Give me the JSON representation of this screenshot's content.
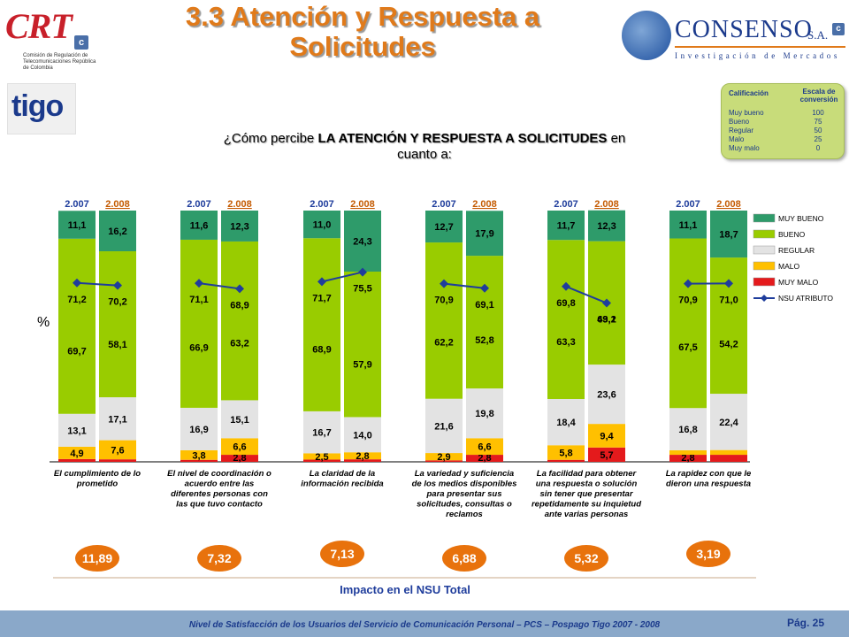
{
  "title": "3.3 Atención y Respuesta a Solicitudes",
  "logos": {
    "crt_mark": "CRT",
    "crt_c": "c",
    "crt_subtitle": "Comisión de Regulación de Telecomunicaciones República de Colombia",
    "tigo": "tigo",
    "consenso_name": "CONSENSO",
    "consenso_sa": "S.A.",
    "consenso_c": "c",
    "consenso_sub": "Investigación de Mercados"
  },
  "scale_box": {
    "col1": "Calificación",
    "col2": "Escala de conversión",
    "rows": [
      {
        "label": "Muy bueno",
        "value": "100"
      },
      {
        "label": "Bueno",
        "value": "75"
      },
      {
        "label": "Regular",
        "value": "50"
      },
      {
        "label": "Malo",
        "value": "25"
      },
      {
        "label": "Muy malo",
        "value": "0"
      }
    ]
  },
  "question": {
    "prefix": "¿Cómo percibe ",
    "bold": "LA ATENCIÓN Y RESPUESTA A SOLICITUDES",
    "suffix": " en cuanto a:"
  },
  "y_axis_label": "%",
  "impact_label": "Impacto en el NSU Total",
  "footer": "Nivel de Satisfacción de los Usuarios del Servicio de Comunicación Personal – PCS – Pospago Tigo 2007 - 2008",
  "page": "Pág. 25",
  "colors": {
    "muy_bueno": "#2e9b6a",
    "bueno": "#99cc00",
    "regular": "#e3e3e3",
    "malo": "#ffc000",
    "muy_malo": "#e41a1c",
    "nsu": "#1f3d9c",
    "impact": "#e8720c",
    "accent_title": "#e07a1a"
  },
  "chart_data": {
    "type": "bar",
    "stacked": true,
    "ylim": [
      0,
      100
    ],
    "legend": {
      "placement": "right",
      "entries": [
        "MUY BUENO",
        "BUENO",
        "REGULAR",
        "MALO",
        "MUY MALO",
        "NSU ATRIBUTO"
      ]
    },
    "groups": [
      {
        "label": "El cumplimiento de lo prometido",
        "impact": "11,89",
        "bars": [
          {
            "year": "2.007",
            "muy_malo": 1.1,
            "malo": 4.9,
            "regular": 13.1,
            "bueno": 69.7,
            "muy_bueno": 11.1,
            "nsu": 71.2,
            "labels": {
              "muy_malo": "",
              "malo": "4,9",
              "regular": "13,1",
              "bueno": "69,7",
              "muy_bueno": "11,1",
              "nsu": "71,2"
            }
          },
          {
            "year": "2.008",
            "muy_malo": 1.0,
            "malo": 7.6,
            "regular": 17.1,
            "bueno": 58.1,
            "muy_bueno": 16.2,
            "nsu": 70.2,
            "labels": {
              "muy_malo": "",
              "malo": "7,6",
              "regular": "17,1",
              "bueno": "58,1",
              "muy_bueno": "16,2",
              "nsu": "70,2"
            }
          }
        ]
      },
      {
        "label": "El nivel de coordinación o acuerdo entre las diferentes personas con las que tuvo contacto",
        "impact": "7,32",
        "bars": [
          {
            "year": "2.007",
            "muy_malo": 0.8,
            "malo": 3.8,
            "regular": 16.9,
            "bueno": 66.9,
            "muy_bueno": 11.6,
            "nsu": 71.1,
            "labels": {
              "muy_malo": "",
              "malo": "3,8",
              "regular": "16,9",
              "bueno": "66,9",
              "muy_bueno": "11,6",
              "nsu": "71,1"
            }
          },
          {
            "year": "2.008",
            "muy_malo": 2.8,
            "malo": 6.6,
            "regular": 15.1,
            "bueno": 63.2,
            "muy_bueno": 12.3,
            "nsu": 68.9,
            "labels": {
              "muy_malo": "2,8",
              "malo": "6,6",
              "regular": "15,1",
              "bueno": "63,2",
              "muy_bueno": "12,3",
              "nsu": "68,9"
            }
          }
        ]
      },
      {
        "label": "La claridad de la información recibida",
        "impact": "7,13",
        "bars": [
          {
            "year": "2.007",
            "muy_malo": 0.9,
            "malo": 2.5,
            "regular": 16.7,
            "bueno": 68.9,
            "muy_bueno": 11.0,
            "nsu": 71.7,
            "labels": {
              "muy_malo": "",
              "malo": "2,5",
              "regular": "16,7",
              "bueno": "68,9",
              "muy_bueno": "11,0",
              "nsu": "71,7"
            }
          },
          {
            "year": "2.008",
            "muy_malo": 1.0,
            "malo": 2.8,
            "regular": 14.0,
            "bueno": 57.9,
            "muy_bueno": 24.3,
            "nsu": 75.5,
            "labels": {
              "muy_malo": "",
              "malo": "2,8",
              "regular": "14,0",
              "bueno": "57,9",
              "muy_bueno": "24,3",
              "nsu": "75,5"
            }
          }
        ]
      },
      {
        "label": "La variedad y suficiencia de los medios disponibles para presentar sus solicitudes, consultas o reclamos",
        "impact": "6,88",
        "bars": [
          {
            "year": "2.007",
            "muy_malo": 0.6,
            "malo": 2.9,
            "regular": 21.6,
            "bueno": 62.2,
            "muy_bueno": 12.7,
            "nsu": 70.9,
            "labels": {
              "muy_malo": "",
              "malo": "2,9",
              "regular": "21,6",
              "bueno": "62,2",
              "muy_bueno": "12,7",
              "nsu": "70,9"
            }
          },
          {
            "year": "2.008",
            "muy_malo": 2.8,
            "malo": 6.6,
            "regular": 19.8,
            "bueno": 52.8,
            "muy_bueno": 17.9,
            "nsu": 69.1,
            "labels": {
              "muy_malo": "2,8",
              "malo": "6,6",
              "regular": "19,8",
              "bueno": "52,8",
              "muy_bueno": "17,9",
              "nsu": "69,1"
            }
          }
        ]
      },
      {
        "label": "La facilidad para obtener una respuesta o solución sin tener que presentar repetidamente su inquietud ante varias personas",
        "impact": "5,32",
        "bars": [
          {
            "year": "2.007",
            "muy_malo": 0.8,
            "malo": 5.8,
            "regular": 18.4,
            "bueno": 63.3,
            "muy_bueno": 11.7,
            "nsu": 69.8,
            "labels": {
              "muy_malo": "",
              "malo": "5,8",
              "regular": "18,4",
              "bueno": "63,3",
              "muy_bueno": "11,7",
              "nsu": "69,8"
            }
          },
          {
            "year": "2.008",
            "muy_malo": 5.7,
            "malo": 9.4,
            "regular": 23.6,
            "bueno": 49.1,
            "muy_bueno": 12.3,
            "nsu": 63.2,
            "labels": {
              "muy_malo": "5,7",
              "malo": "9,4",
              "regular": "23,6",
              "bueno": "49,1",
              "muy_bueno": "12,3",
              "nsu": "63,2"
            }
          }
        ]
      },
      {
        "label": "La rapidez con que le dieron una respuesta",
        "impact": "3,19",
        "bars": [
          {
            "year": "2.007",
            "muy_malo": 2.8,
            "malo": 1.8,
            "regular": 16.8,
            "bueno": 67.5,
            "muy_bueno": 11.1,
            "nsu": 70.9,
            "labels": {
              "muy_malo": "2,8",
              "malo": "",
              "regular": "16,8",
              "bueno": "67,5",
              "muy_bueno": "11,1",
              "nsu": "70,9"
            }
          },
          {
            "year": "2.008",
            "muy_malo": 2.8,
            "malo": 1.9,
            "regular": 22.4,
            "bueno": 54.2,
            "muy_bueno": 18.7,
            "nsu": 71.0,
            "labels": {
              "muy_malo": "",
              "malo": "",
              "regular": "22,4",
              "bueno": "54,2",
              "muy_bueno": "18,7",
              "nsu": "71,0"
            }
          }
        ]
      }
    ]
  }
}
